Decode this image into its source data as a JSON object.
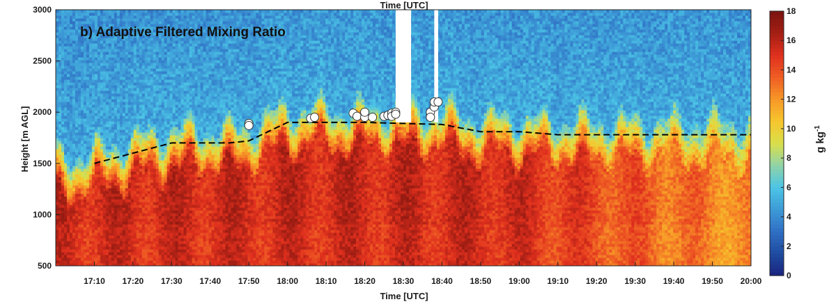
{
  "chart_data": {
    "type": "heatmap",
    "title": "b) Adaptive Filtered Mixing Ratio",
    "top_label": "Time [UTC]",
    "xlabel": "Time [UTC]",
    "ylabel": "Height [m AGL]",
    "x_ticks": [
      "17:10",
      "17:20",
      "17:30",
      "17:40",
      "17:50",
      "18:00",
      "18:10",
      "18:20",
      "18:30",
      "18:40",
      "18:50",
      "19:00",
      "19:10",
      "19:20",
      "19:30",
      "19:40",
      "19:50",
      "20:00"
    ],
    "xlim": [
      "17:00",
      "20:00"
    ],
    "y_ticks": [
      500,
      1000,
      1500,
      2000,
      2500,
      3000
    ],
    "ylim": [
      500,
      3000
    ],
    "colorbar": {
      "label": "g kg",
      "label_exponent": "-1",
      "range": [
        0,
        18
      ],
      "ticks": [
        0,
        2,
        4,
        6,
        8,
        10,
        12,
        14,
        16,
        18
      ],
      "colors": [
        "#1a237e",
        "#1e4ba0",
        "#2f6fc4",
        "#3d9ad6",
        "#4bc4e6",
        "#8fd3a8",
        "#d9df4a",
        "#f6c62e",
        "#f79827",
        "#ef5e24",
        "#e0301e",
        "#a51f14",
        "#7a1410"
      ]
    },
    "boundary_layer_height": {
      "style": "dashed",
      "times": [
        "17:10",
        "17:30",
        "17:45",
        "17:50",
        "18:00",
        "18:20",
        "18:40",
        "18:50",
        "19:00",
        "19:10",
        "19:30",
        "19:45",
        "20:00"
      ],
      "heights": [
        1500,
        1700,
        1700,
        1720,
        1900,
        1900,
        1880,
        1810,
        1810,
        1780,
        1780,
        1780,
        1780
      ]
    },
    "sounding_points": {
      "times": [
        "17:50",
        "17:50",
        "18:06",
        "18:07",
        "18:17",
        "18:18",
        "18:20",
        "18:20",
        "18:22",
        "18:25",
        "18:26",
        "18:27",
        "18:27",
        "18:28",
        "18:28",
        "18:37",
        "18:37",
        "18:38",
        "18:38",
        "18:39"
      ],
      "heights": [
        1890,
        1870,
        1940,
        1950,
        1990,
        1960,
        1950,
        2000,
        1950,
        1960,
        1970,
        1990,
        1960,
        2000,
        1980,
        2000,
        1950,
        2050,
        2100,
        2100
      ]
    },
    "data_gaps": [
      {
        "start": "18:28",
        "end": "18:32"
      },
      {
        "start": "18:38",
        "end": "18:39"
      }
    ],
    "grid": false
  }
}
